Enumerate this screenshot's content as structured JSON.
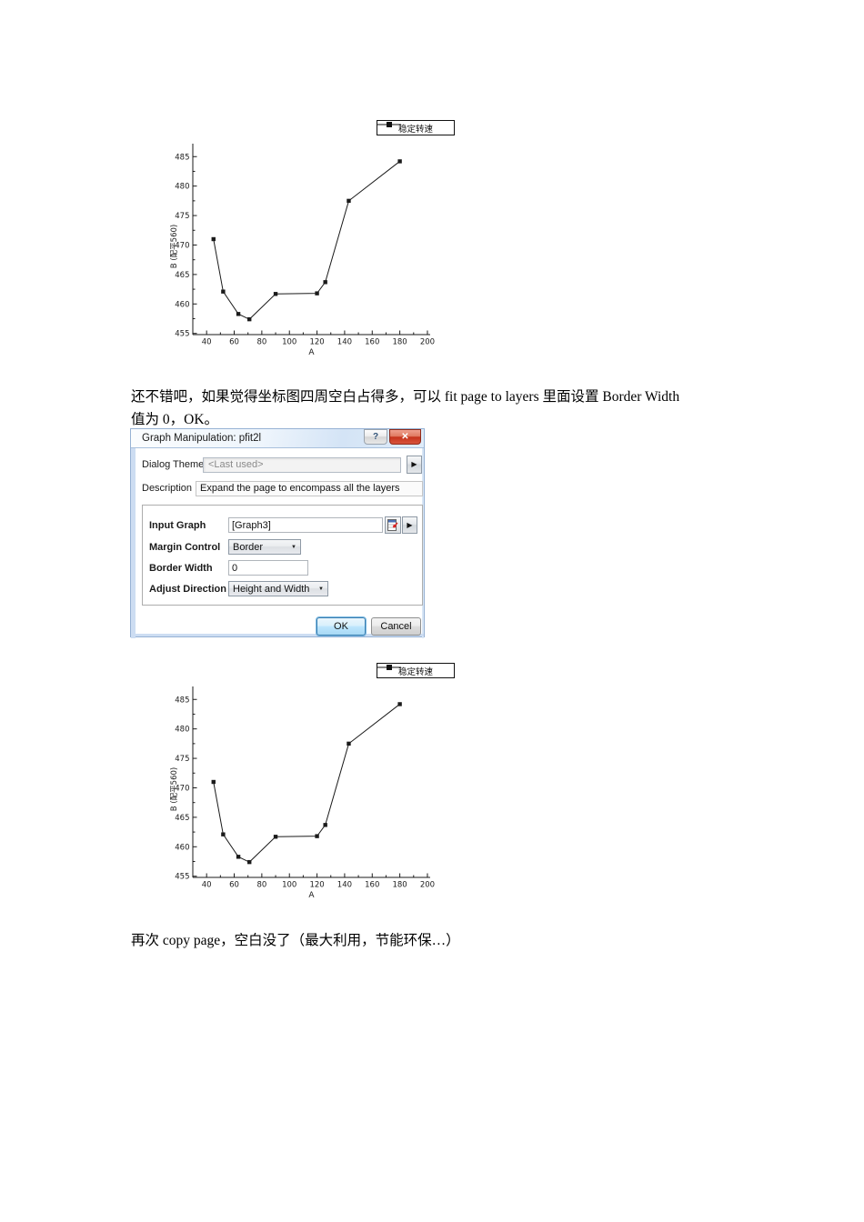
{
  "document": {
    "para1": "还不错吧，如果觉得坐标图四周空白占得多，可以 fit page to layers 里面设置 Border Width 值为 0，OK。",
    "para2": "再次 copy page，空白没了（最大利用，节能环保…）"
  },
  "chart_data": {
    "type": "line",
    "series": [
      {
        "name": "稳定转速",
        "x": [
          45,
          52,
          63,
          71,
          90,
          120,
          126,
          143,
          180
        ],
        "y": [
          471.0,
          462.1,
          458.3,
          457.4,
          461.7,
          461.8,
          463.7,
          477.5,
          484.2
        ]
      }
    ],
    "title": "",
    "xlabel": "A",
    "ylabel": "B (配平560)",
    "xlim": [
      30,
      202
    ],
    "ylim": [
      454.8,
      487.2
    ],
    "xticks": [
      40,
      60,
      80,
      100,
      120,
      140,
      160,
      180,
      200
    ],
    "yticks": [
      455,
      460,
      465,
      470,
      475,
      480,
      485
    ],
    "x_minor_step": 10,
    "y_minor_step": 2.5,
    "legend_position": "top-right",
    "marker": "square",
    "line_color": "#1a1a1a",
    "grid": false
  },
  "dialog": {
    "title": "Graph Manipulation: pfit2l",
    "help_button": "?",
    "close_button": "✕",
    "theme_label": "Dialog Theme",
    "theme_value": "<Last used>",
    "flyout_arrow": "▶",
    "description_label": "Description",
    "description_value": "Expand the page to encompass all the layers",
    "input_graph_label": "Input Graph",
    "input_graph_value": "[Graph3]",
    "margin_control_label": "Margin Control",
    "margin_control_value": "Border",
    "border_width_label": "Border Width",
    "border_width_value": "0",
    "adjust_direction_label": "Adjust Direction",
    "adjust_direction_value": "Height and Width",
    "dropdown_arrow": "▼",
    "ok_label": "OK",
    "cancel_label": "Cancel"
  }
}
